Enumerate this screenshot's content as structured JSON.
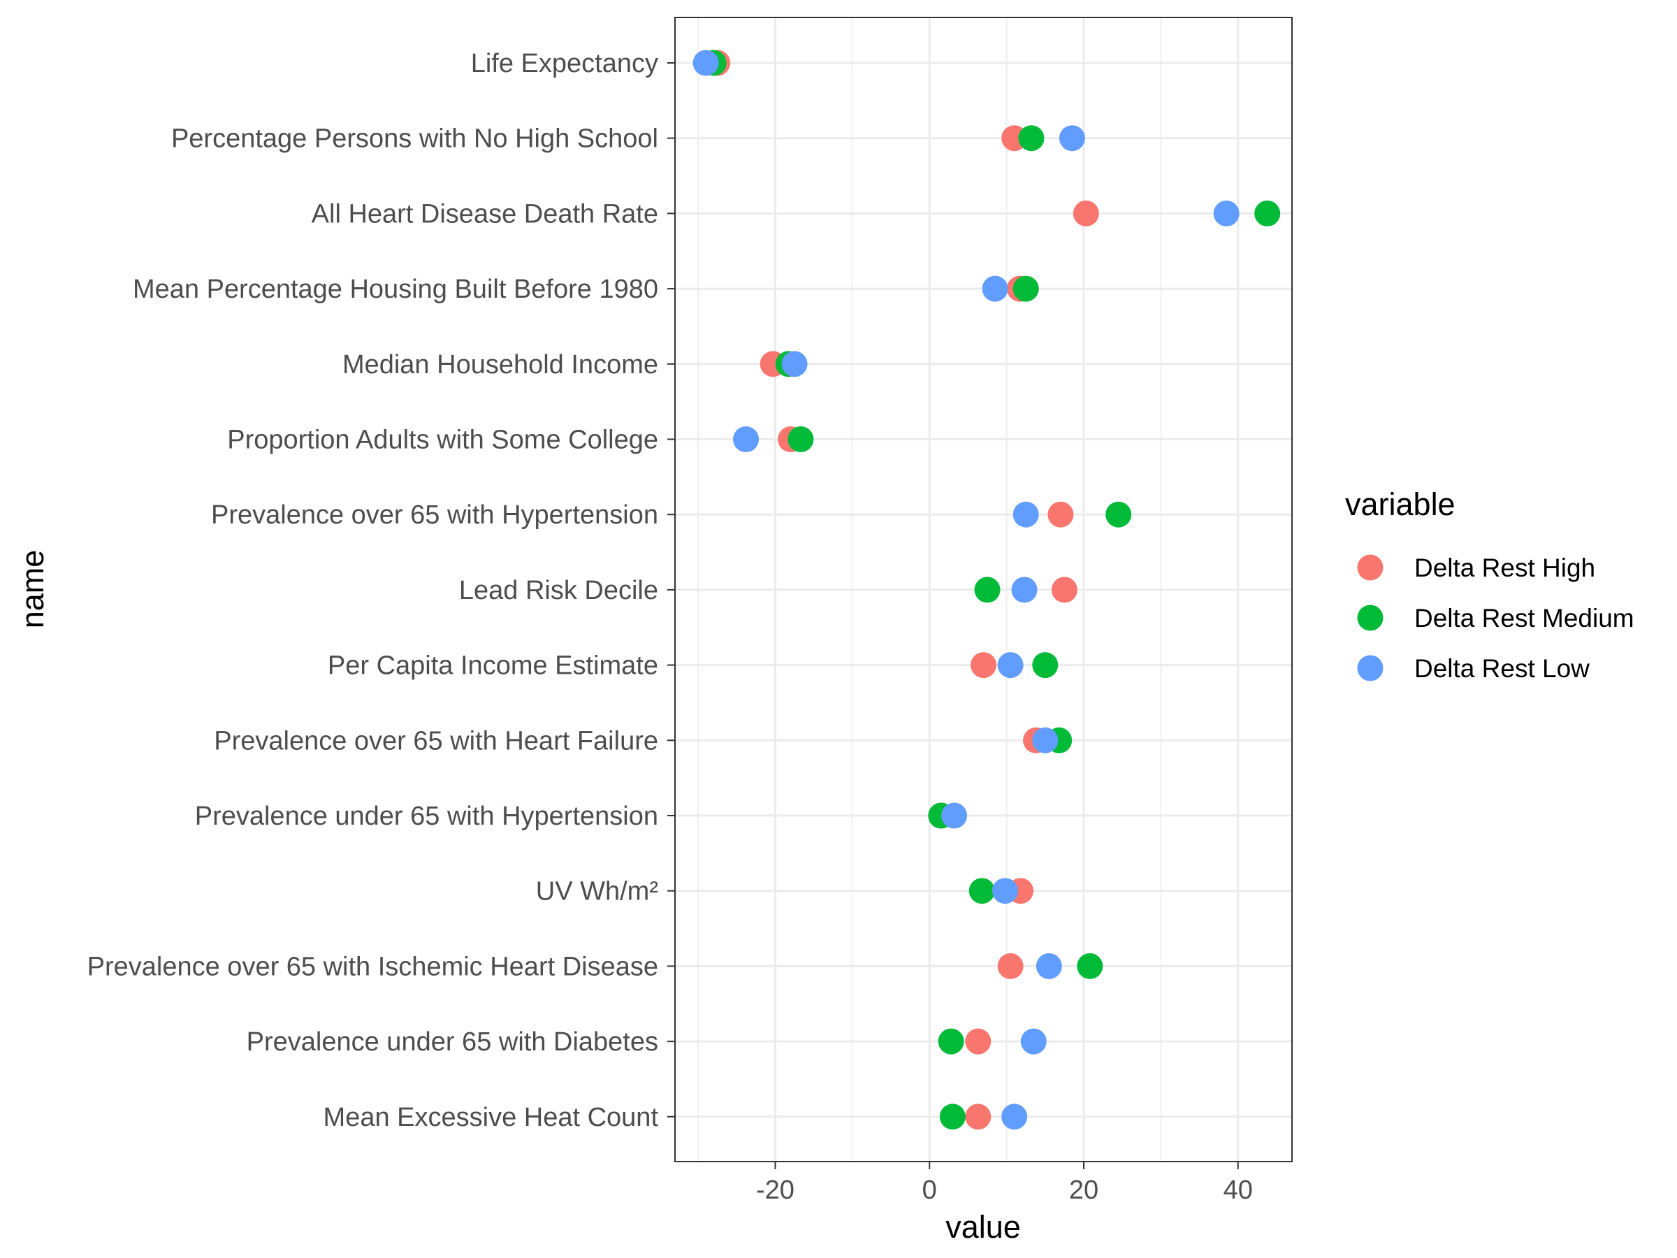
{
  "chart_data": {
    "type": "scatter",
    "title": "",
    "xlabel": "value",
    "ylabel": "name",
    "xlim": [
      -33,
      47
    ],
    "xticks": [
      -20,
      0,
      20,
      40
    ],
    "grid": true,
    "legend": {
      "title": "variable",
      "position": "right"
    },
    "categories": [
      "Life Expectancy",
      "Percentage Persons with No High School",
      "All Heart Disease Death Rate",
      "Mean Percentage Housing Built Before 1980",
      "Median Household Income",
      "Proportion Adults with Some College",
      "Prevalence over 65 with Hypertension",
      "Lead Risk Decile",
      "Per Capita Income Estimate",
      "Prevalence over 65 with Heart Failure",
      "Prevalence under 65 with Hypertension",
      "UV Wh/m²",
      "Prevalence over 65 with Ischemic Heart Disease",
      "Prevalence under 65 with Diabetes",
      "Mean Excessive Heat Count"
    ],
    "series": [
      {
        "name": "Delta Rest High",
        "color": "#F8766D",
        "values": [
          -27.5,
          11,
          20.3,
          11.7,
          -20.3,
          -18,
          17,
          17.5,
          7,
          13.8,
          1.5,
          11.8,
          10.5,
          6.3,
          6.3
        ]
      },
      {
        "name": "Delta Rest Medium",
        "color": "#00BA38",
        "values": [
          -28,
          13.2,
          43.8,
          12.5,
          -18.3,
          -16.7,
          24.5,
          7.5,
          15,
          16.8,
          1.5,
          6.8,
          20.8,
          2.8,
          3
        ]
      },
      {
        "name": "Delta Rest Low",
        "color": "#619CFF",
        "values": [
          -29,
          18.5,
          38.5,
          8.5,
          -17.5,
          -23.8,
          12.5,
          12.3,
          10.5,
          15,
          3.2,
          9.8,
          15.5,
          13.5,
          11
        ]
      }
    ]
  }
}
